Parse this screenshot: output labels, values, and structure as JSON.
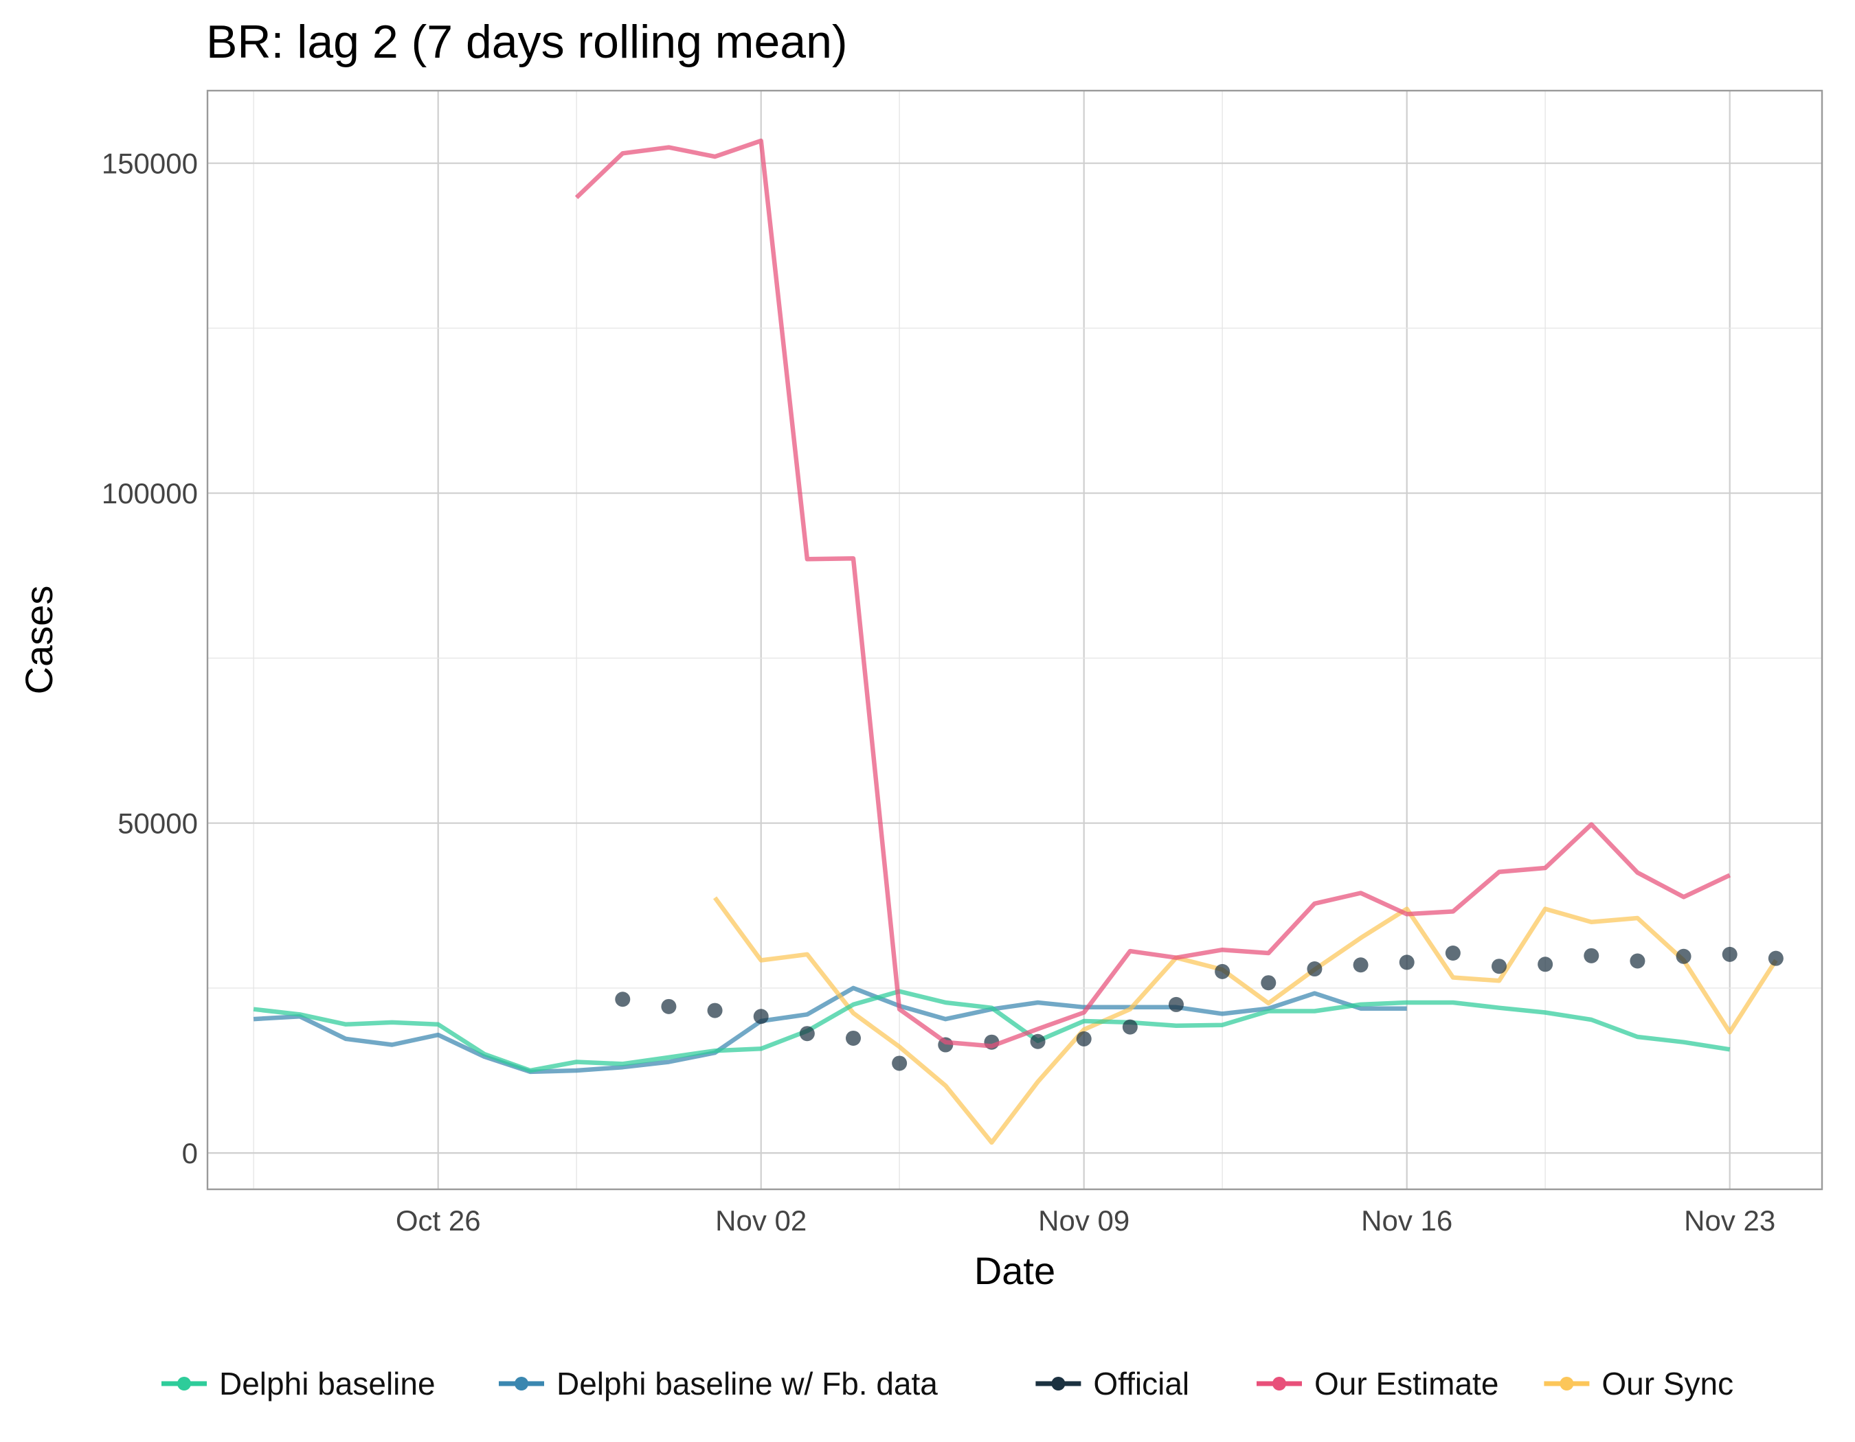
{
  "chart_data": {
    "type": "line",
    "title": "BR: lag 2 (7 days rolling mean)",
    "xlabel": "Date",
    "ylabel": "Cases",
    "x_start": "2020-10-22",
    "xlim": [
      "2020-10-21",
      "2020-11-25"
    ],
    "ylim": [
      -5500,
      161000
    ],
    "x_ticks": [
      "2020-10-26",
      "2020-11-02",
      "2020-11-09",
      "2020-11-16",
      "2020-11-23"
    ],
    "x_tick_labels": [
      "Oct 26",
      "Nov 02",
      "Nov 09",
      "Nov 16",
      "Nov 23"
    ],
    "y_ticks": [
      0,
      50000,
      100000,
      150000
    ],
    "y_tick_labels": [
      "0",
      "50000",
      "100000",
      "150000"
    ],
    "grid": true,
    "legend_position": "bottom",
    "series": [
      {
        "name": "Delphi baseline",
        "color": "#2ecc9a",
        "style": "line",
        "x": [
          "2020-10-22",
          "2020-10-23",
          "2020-10-24",
          "2020-10-25",
          "2020-10-26",
          "2020-10-27",
          "2020-10-28",
          "2020-10-29",
          "2020-10-30",
          "2020-10-31",
          "2020-11-01",
          "2020-11-02",
          "2020-11-03",
          "2020-11-04",
          "2020-11-05",
          "2020-11-06",
          "2020-11-07",
          "2020-11-08",
          "2020-11-09",
          "2020-11-10",
          "2020-11-11",
          "2020-11-12",
          "2020-11-13",
          "2020-11-14",
          "2020-11-15",
          "2020-11-16",
          "2020-11-17",
          "2020-11-18",
          "2020-11-19",
          "2020-11-20",
          "2020-11-21",
          "2020-11-22",
          "2020-11-23",
          "2020-11-24"
        ],
        "values": [
          21800,
          21000,
          19500,
          19800,
          19500,
          15000,
          12500,
          13800,
          13500,
          14500,
          15500,
          15800,
          18500,
          22500,
          24500,
          22800,
          22000,
          17000,
          20000,
          19800,
          19300,
          19400,
          21500,
          21500,
          22500,
          22800,
          22800,
          22000,
          21300,
          20200,
          17600,
          16800,
          15700,
          null
        ]
      },
      {
        "name": "Delphi baseline w/ Fb. data",
        "color": "#3a87b0",
        "style": "line",
        "x": [
          "2020-10-22",
          "2020-10-23",
          "2020-10-24",
          "2020-10-25",
          "2020-10-26",
          "2020-10-27",
          "2020-10-28",
          "2020-10-29",
          "2020-10-30",
          "2020-10-31",
          "2020-11-01",
          "2020-11-02",
          "2020-11-03",
          "2020-11-04",
          "2020-11-05",
          "2020-11-06",
          "2020-11-07",
          "2020-11-08",
          "2020-11-09",
          "2020-11-10",
          "2020-11-11",
          "2020-11-12",
          "2020-11-13",
          "2020-11-14",
          "2020-11-15",
          "2020-11-16",
          "2020-11-17",
          "2020-11-18"
        ],
        "values": [
          20300,
          20700,
          17300,
          16400,
          17900,
          14600,
          12300,
          12500,
          13000,
          13800,
          15200,
          20000,
          21000,
          25000,
          22300,
          20300,
          21800,
          22800,
          22100,
          22100,
          22100,
          21100,
          21900,
          24200,
          21900,
          21900,
          null,
          null
        ]
      },
      {
        "name": "Official",
        "color": "#1b3140",
        "style": "points",
        "x": [
          "2020-10-30",
          "2020-10-31",
          "2020-11-01",
          "2020-11-02",
          "2020-11-03",
          "2020-11-04",
          "2020-11-05",
          "2020-11-06",
          "2020-11-07",
          "2020-11-08",
          "2020-11-09",
          "2020-11-10",
          "2020-11-11",
          "2020-11-12",
          "2020-11-13",
          "2020-11-14",
          "2020-11-15",
          "2020-11-16",
          "2020-11-17",
          "2020-11-18",
          "2020-11-19",
          "2020-11-20",
          "2020-11-21",
          "2020-11-22",
          "2020-11-23",
          "2020-11-24"
        ],
        "values": [
          23300,
          22200,
          21600,
          20700,
          18100,
          17400,
          13600,
          16400,
          16800,
          16900,
          17300,
          19100,
          22500,
          27500,
          25800,
          27900,
          28500,
          28900,
          30300,
          28300,
          28600,
          29900,
          29100,
          29800,
          30100,
          29500
        ]
      },
      {
        "name": "Our Estimate",
        "color": "#e8507a",
        "style": "line",
        "x": [
          "2020-10-29",
          "2020-10-30",
          "2020-10-31",
          "2020-11-01",
          "2020-11-02",
          "2020-11-03",
          "2020-11-04",
          "2020-11-05",
          "2020-11-06",
          "2020-11-07",
          "2020-11-08",
          "2020-11-09",
          "2020-11-10",
          "2020-11-11",
          "2020-11-12",
          "2020-11-13",
          "2020-11-14",
          "2020-11-15",
          "2020-11-16",
          "2020-11-17",
          "2020-11-18",
          "2020-11-19",
          "2020-11-20",
          "2020-11-21",
          "2020-11-22",
          "2020-11-23",
          "2020-11-24"
        ],
        "values": [
          144800,
          151500,
          152400,
          151000,
          153400,
          90000,
          90100,
          21800,
          16800,
          16200,
          18800,
          21300,
          30600,
          29600,
          30800,
          30300,
          37800,
          39400,
          36200,
          36600,
          42600,
          43200,
          49800,
          42500,
          38800,
          42100,
          null
        ]
      },
      {
        "name": "Our Sync",
        "color": "#fcc659",
        "style": "line",
        "x": [
          "2020-11-01",
          "2020-11-02",
          "2020-11-03",
          "2020-11-04",
          "2020-11-05",
          "2020-11-06",
          "2020-11-07",
          "2020-11-08",
          "2020-11-09",
          "2020-11-10",
          "2020-11-11",
          "2020-11-12",
          "2020-11-13",
          "2020-11-14",
          "2020-11-15",
          "2020-11-16",
          "2020-11-17",
          "2020-11-18",
          "2020-11-19",
          "2020-11-20",
          "2020-11-21",
          "2020-11-22",
          "2020-11-23",
          "2020-11-24"
        ],
        "values": [
          38700,
          29200,
          30100,
          21200,
          16100,
          10200,
          1600,
          10800,
          18700,
          21800,
          29600,
          27800,
          22700,
          27800,
          32600,
          37000,
          26600,
          26100,
          37000,
          35000,
          35600,
          29200,
          18300,
          29200
        ]
      }
    ]
  }
}
